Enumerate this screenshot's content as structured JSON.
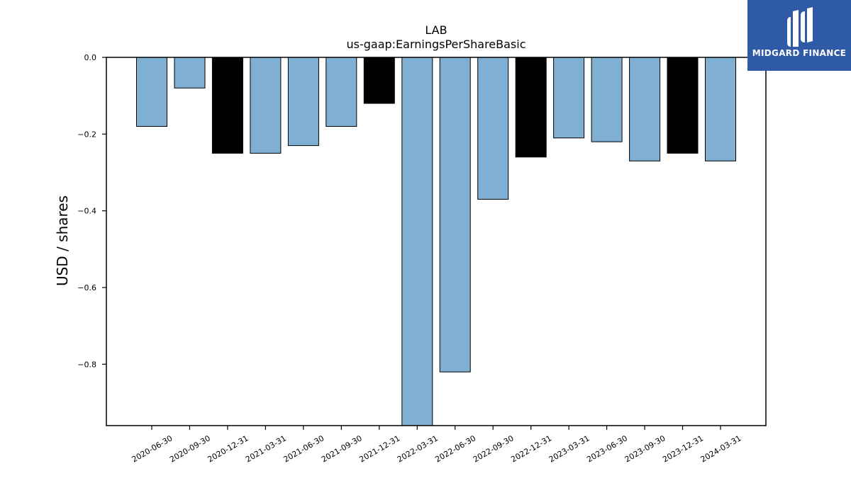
{
  "logo": {
    "text": "MIDGARD FINANCE",
    "bg_color": "#2f5ba6"
  },
  "chart_data": {
    "type": "bar",
    "title": "LAB",
    "subtitle": "us-gaap:EarningsPerShareBasic",
    "xlabel": "",
    "ylabel": "USD / shares",
    "ylim": [
      -0.96,
      0.0
    ],
    "yticks": [
      0.0,
      -0.2,
      -0.4,
      -0.6,
      -0.8
    ],
    "ytick_labels": [
      "0.0",
      "−0.2",
      "−0.4",
      "−0.6",
      "−0.8"
    ],
    "categories": [
      "2020-06-30",
      "2020-09-30",
      "2020-12-31",
      "2021-03-31",
      "2021-06-30",
      "2021-09-30",
      "2021-12-31",
      "2022-03-31",
      "2022-06-30",
      "2022-09-30",
      "2022-12-31",
      "2023-03-31",
      "2023-06-30",
      "2023-09-30",
      "2023-12-31",
      "2024-03-31"
    ],
    "values": [
      -0.18,
      -0.08,
      -0.25,
      -0.25,
      -0.23,
      -0.18,
      -0.12,
      -0.96,
      -0.82,
      -0.37,
      -0.26,
      -0.21,
      -0.22,
      -0.27,
      -0.25,
      -0.27
    ],
    "bar_colors": [
      "#7fb0d4",
      "#7fb0d4",
      "#000000",
      "#7fb0d4",
      "#7fb0d4",
      "#7fb0d4",
      "#000000",
      "#7fb0d4",
      "#7fb0d4",
      "#7fb0d4",
      "#000000",
      "#7fb0d4",
      "#7fb0d4",
      "#7fb0d4",
      "#000000",
      "#7fb0d4"
    ],
    "grid": false,
    "legend": "none"
  }
}
